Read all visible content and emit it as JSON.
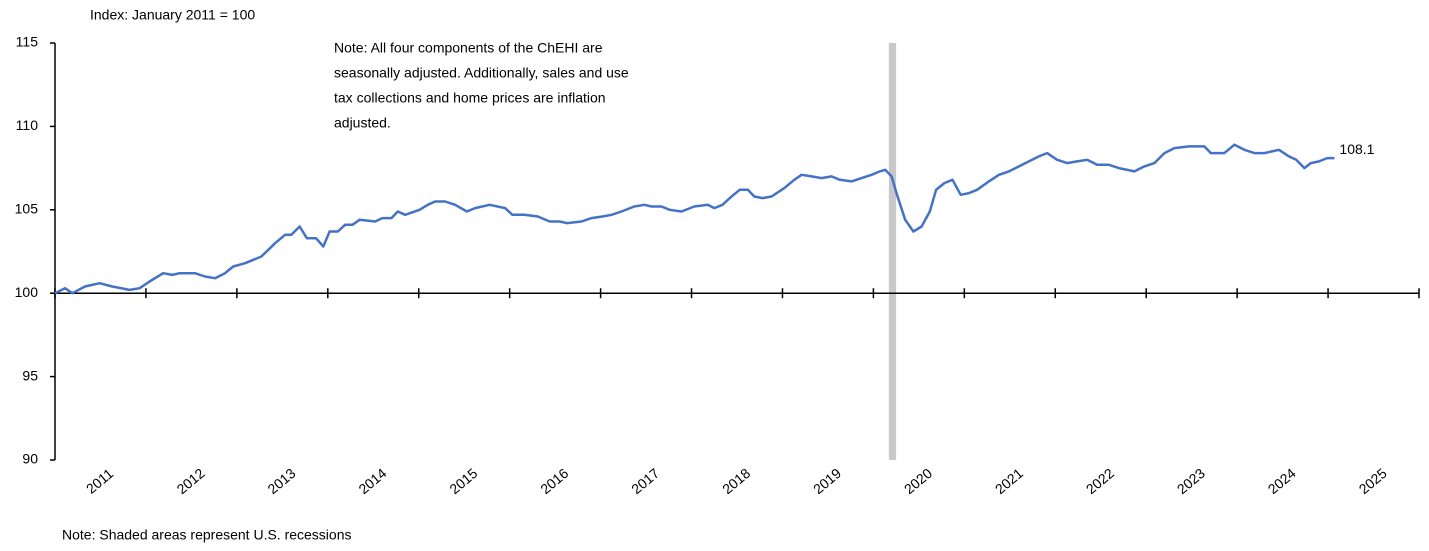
{
  "chart_data": {
    "type": "line",
    "subtitle": "Index: January 2011 = 100",
    "note_lines": [
      "Note: All four components of the ChEHI are",
      "seasonally adjusted. Additionally, sales and use",
      "tax collections and home prices are inflation",
      "adjusted."
    ],
    "footnote": "Note: Shaded areas represent U.S. recessions",
    "end_label": "108.1",
    "color": "#4472c4",
    "recession_color": "#c8c8c8",
    "recessions": [
      [
        2020.17,
        2020.25
      ]
    ],
    "xlim": [
      2011,
      2026
    ],
    "xticks": [
      2011,
      2012,
      2013,
      2014,
      2015,
      2016,
      2017,
      2018,
      2019,
      2020,
      2021,
      2022,
      2023,
      2024,
      2025,
      2026
    ],
    "year_labels": [
      2011,
      2012,
      2013,
      2014,
      2015,
      2016,
      2017,
      2018,
      2019,
      2020,
      2021,
      2022,
      2023,
      2024,
      2025
    ],
    "ylim": [
      90,
      115
    ],
    "yticks": [
      90,
      95,
      100,
      105,
      110,
      115
    ],
    "x_axis_at": 100,
    "x": [
      2011.0,
      2011.11,
      2011.19,
      2011.33,
      2011.49,
      2011.63,
      2011.82,
      2011.93,
      2012.04,
      2012.19,
      2012.29,
      2012.37,
      2012.54,
      2012.65,
      2012.76,
      2012.87,
      2012.96,
      2013.09,
      2013.27,
      2013.42,
      2013.53,
      2013.6,
      2013.69,
      2013.77,
      2013.87,
      2013.95,
      2014.02,
      2014.11,
      2014.19,
      2014.27,
      2014.35,
      2014.52,
      2014.6,
      2014.7,
      2014.77,
      2014.85,
      2015.01,
      2015.1,
      2015.18,
      2015.29,
      2015.4,
      2015.53,
      2015.62,
      2015.78,
      2015.95,
      2016.03,
      2016.16,
      2016.31,
      2016.44,
      2016.55,
      2016.63,
      2016.79,
      2016.9,
      2017.02,
      2017.12,
      2017.23,
      2017.37,
      2017.48,
      2017.56,
      2017.67,
      2017.76,
      2017.89,
      2018.03,
      2018.18,
      2018.25,
      2018.34,
      2018.44,
      2018.53,
      2018.62,
      2018.69,
      2018.78,
      2018.88,
      2019.02,
      2019.13,
      2019.21,
      2019.32,
      2019.43,
      2019.54,
      2019.63,
      2019.76,
      2019.87,
      2019.98,
      2020.07,
      2020.13,
      2020.2,
      2020.26,
      2020.35,
      2020.44,
      2020.53,
      2020.62,
      2020.69,
      2020.78,
      2020.87,
      2020.96,
      2021.05,
      2021.14,
      2021.27,
      2021.38,
      2021.49,
      2021.6,
      2021.71,
      2021.82,
      2021.91,
      2022.02,
      2022.13,
      2022.24,
      2022.35,
      2022.46,
      2022.59,
      2022.7,
      2022.87,
      2022.98,
      2023.09,
      2023.2,
      2023.31,
      2023.47,
      2023.64,
      2023.71,
      2023.86,
      2023.97,
      2024.08,
      2024.19,
      2024.3,
      2024.46,
      2024.57,
      2024.65,
      2024.74,
      2024.81,
      2024.9,
      2024.99,
      2025.07
    ],
    "values": [
      100.0,
      100.3,
      100.0,
      100.4,
      100.6,
      100.4,
      100.2,
      100.3,
      100.7,
      101.2,
      101.1,
      101.2,
      101.2,
      101.0,
      100.9,
      101.2,
      101.6,
      101.8,
      102.2,
      103.0,
      103.5,
      103.5,
      104.0,
      103.3,
      103.3,
      102.8,
      103.7,
      103.7,
      104.1,
      104.1,
      104.4,
      104.3,
      104.5,
      104.5,
      104.9,
      104.7,
      105.0,
      105.3,
      105.5,
      105.5,
      105.3,
      104.9,
      105.1,
      105.3,
      105.1,
      104.7,
      104.7,
      104.6,
      104.3,
      104.3,
      104.2,
      104.3,
      104.5,
      104.6,
      104.7,
      104.9,
      105.2,
      105.3,
      105.2,
      105.2,
      105.0,
      104.9,
      105.2,
      105.3,
      105.1,
      105.3,
      105.8,
      106.2,
      106.2,
      105.8,
      105.7,
      105.8,
      106.3,
      106.8,
      107.1,
      107.0,
      106.9,
      107.0,
      106.8,
      106.7,
      106.9,
      107.1,
      107.3,
      107.4,
      107.0,
      105.9,
      104.4,
      103.7,
      104.0,
      104.9,
      106.2,
      106.6,
      106.8,
      105.9,
      106.0,
      106.2,
      106.7,
      107.1,
      107.3,
      107.6,
      107.9,
      108.2,
      108.4,
      108.0,
      107.8,
      107.9,
      108.0,
      107.7,
      107.7,
      107.5,
      107.3,
      107.6,
      107.8,
      108.4,
      108.7,
      108.8,
      108.8,
      108.4,
      108.4,
      108.9,
      108.6,
      108.4,
      108.4,
      108.6,
      108.2,
      108.0,
      107.5,
      107.8,
      107.9,
      108.1,
      108.1
    ]
  }
}
